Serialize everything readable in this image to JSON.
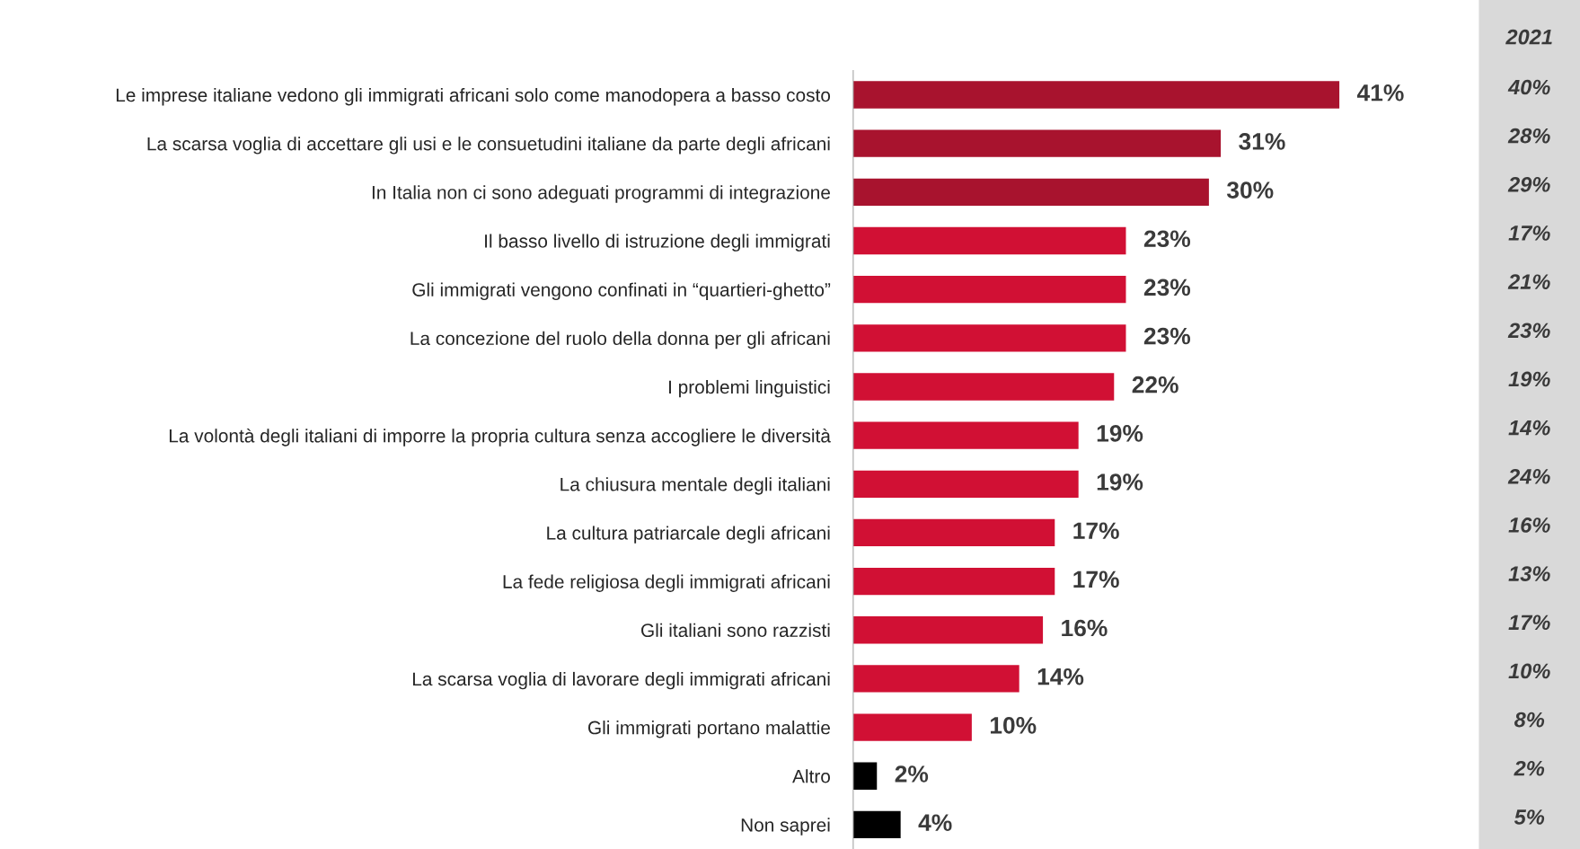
{
  "chart_data": [
    {
      "type": "bar",
      "orientation": "horizontal",
      "grid": false,
      "legend": false,
      "categories": [
        "Le imprese italiane vedono gli immigrati africani solo come manodopera a basso costo",
        "La scarsa voglia di accettare gli usi e le consuetudini italiane da parte degli africani",
        "In Italia non ci sono adeguati programmi di integrazione",
        "Il basso livello di istruzione degli immigrati",
        "Gli immigrati vengono confinati in “quartieri-ghetto”",
        "La concezione del ruolo della donna per gli africani",
        "I problemi linguistici",
        "La volontà degli italiani di imporre la propria cultura senza accogliere le diversità",
        "La chiusura mentale degli italiani",
        "La cultura patriarcale degli africani",
        "La fede religiosa degli immigrati africani",
        "Gli italiani sono razzisti",
        "La scarsa voglia di lavorare degli immigrati africani",
        "Gli immigrati portano malattie",
        "Altro",
        "Non saprei"
      ],
      "values": [
        41,
        31,
        30,
        23,
        23,
        23,
        22,
        19,
        19,
        17,
        17,
        16,
        14,
        10,
        2,
        4
      ],
      "value_labels": [
        "41%",
        "31%",
        "30%",
        "23%",
        "23%",
        "23%",
        "22%",
        "19%",
        "19%",
        "17%",
        "17%",
        "16%",
        "14%",
        "10%",
        "2%",
        "4%"
      ],
      "colors": [
        "#a8132e",
        "#a8132e",
        "#a8132e",
        "#d11034",
        "#d11034",
        "#d11034",
        "#d11034",
        "#d11034",
        "#d11034",
        "#d11034",
        "#d11034",
        "#d11034",
        "#d11034",
        "#d11034",
        "#000000",
        "#000000"
      ]
    },
    {
      "type": "other",
      "title": "2021",
      "annotations": [
        "40%",
        "28%",
        "29%",
        "17%",
        "21%",
        "23%",
        "19%",
        "14%",
        "24%",
        "16%",
        "13%",
        "17%",
        "10%",
        "8%",
        "2%",
        "5%"
      ]
    }
  ]
}
